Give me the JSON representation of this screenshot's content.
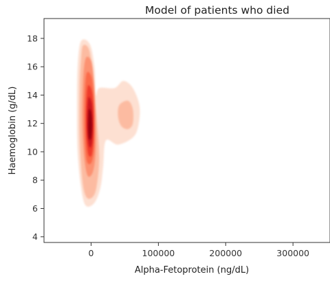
{
  "chart_data": {
    "type": "kde",
    "title": "Model of patients who died",
    "xlabel": "Alpha-Fetoprotein (ng/dL)",
    "ylabel": "Haemoglobin (g/dL)",
    "xlim": [
      -70000,
      355000
    ],
    "ylim": [
      3.6,
      19.4
    ],
    "xticks": [
      0,
      100000,
      200000,
      300000
    ],
    "xtick_labels": [
      "0",
      "100000",
      "200000",
      "300000"
    ],
    "yticks": [
      4,
      6,
      8,
      10,
      12,
      14,
      16,
      18
    ],
    "ytick_labels": [
      "4",
      "6",
      "8",
      "10",
      "12",
      "14",
      "16",
      "18"
    ],
    "grid": false,
    "colormap": [
      "#fde0d2",
      "#fcbba1",
      "#fc9272",
      "#fb6a4a",
      "#ef3b2c",
      "#cb181d",
      "#99000d"
    ],
    "density_peaks": [
      {
        "x": 0,
        "y": 11.8
      },
      {
        "x": 50000,
        "y": 12.4
      }
    ],
    "contours": [
      {
        "level": 1,
        "color": "#fde0d2",
        "points": [
          [
            -15000,
            17.8
          ],
          [
            -2000,
            17.6
          ],
          [
            5000,
            16
          ],
          [
            7000,
            14
          ],
          [
            12000,
            14.5
          ],
          [
            35000,
            14.5
          ],
          [
            48000,
            15
          ],
          [
            62000,
            14.5
          ],
          [
            72000,
            13.2
          ],
          [
            70000,
            11.8
          ],
          [
            62000,
            11
          ],
          [
            40000,
            10.5
          ],
          [
            22000,
            10.8
          ],
          [
            18000,
            9
          ],
          [
            14000,
            7.5
          ],
          [
            5000,
            6.4
          ],
          [
            -8000,
            6.2
          ],
          [
            -15000,
            7.5
          ],
          [
            -20000,
            10
          ],
          [
            -21000,
            13
          ],
          [
            -20000,
            16
          ]
        ]
      },
      {
        "level": 2,
        "color": "#fcbba1",
        "points": [
          [
            -12000,
            17.5
          ],
          [
            -3000,
            17.2
          ],
          [
            2000,
            15.5
          ],
          [
            6000,
            13.5
          ],
          [
            9000,
            12
          ],
          [
            12000,
            9.5
          ],
          [
            8000,
            7.5
          ],
          [
            2000,
            6.8
          ],
          [
            -7000,
            6.8
          ],
          [
            -13000,
            8
          ],
          [
            -17000,
            11
          ],
          [
            -17000,
            14.5
          ],
          [
            -15000,
            16.5
          ]
        ]
      },
      {
        "level": 2,
        "color": "#fcbba1",
        "points": [
          [
            42000,
            13.3
          ],
          [
            55000,
            13.6
          ],
          [
            62000,
            13
          ],
          [
            62000,
            12
          ],
          [
            55000,
            11.6
          ],
          [
            45000,
            11.8
          ],
          [
            40000,
            12.5
          ]
        ]
      },
      {
        "level": 3,
        "color": "#fc9272",
        "points": [
          [
            -8000,
            16.6
          ],
          [
            0,
            16.4
          ],
          [
            4000,
            15
          ],
          [
            6000,
            13
          ],
          [
            7000,
            11
          ],
          [
            6000,
            9.5
          ],
          [
            2000,
            8.5
          ],
          [
            -5000,
            8.3
          ],
          [
            -10000,
            9.5
          ],
          [
            -13000,
            12
          ],
          [
            -12000,
            15
          ]
        ]
      },
      {
        "level": 4,
        "color": "#fb6a4a",
        "points": [
          [
            -6000,
            15.6
          ],
          [
            1000,
            15.2
          ],
          [
            4000,
            13.6
          ],
          [
            5000,
            11.5
          ],
          [
            4000,
            10
          ],
          [
            0,
            9.2
          ],
          [
            -6000,
            9.3
          ],
          [
            -9000,
            10.5
          ],
          [
            -10000,
            12.5
          ],
          [
            -9000,
            14.5
          ]
        ]
      },
      {
        "level": 5,
        "color": "#ef3b2c",
        "points": [
          [
            -5000,
            14.6
          ],
          [
            1000,
            14.3
          ],
          [
            3500,
            13
          ],
          [
            3500,
            11
          ],
          [
            1000,
            9.8
          ],
          [
            -4000,
            9.8
          ],
          [
            -7000,
            11
          ],
          [
            -7500,
            12.8
          ]
        ]
      },
      {
        "level": 6,
        "color": "#cb181d",
        "points": [
          [
            -4000,
            13.8
          ],
          [
            1000,
            13.4
          ],
          [
            2500,
            12
          ],
          [
            1500,
            10.7
          ],
          [
            -2000,
            10.3
          ],
          [
            -5000,
            11
          ],
          [
            -6000,
            12.3
          ]
        ]
      },
      {
        "level": 7,
        "color": "#99000d",
        "points": [
          [
            -3000,
            13
          ],
          [
            0,
            12.8
          ],
          [
            1500,
            11.9
          ],
          [
            0,
            11
          ],
          [
            -3000,
            10.9
          ],
          [
            -4500,
            11.6
          ],
          [
            -4000,
            12.5
          ]
        ]
      }
    ]
  }
}
